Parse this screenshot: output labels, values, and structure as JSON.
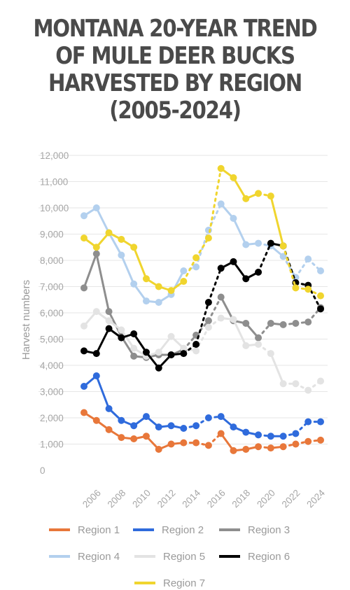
{
  "chart_data": {
    "type": "line",
    "title": "MONTANA 20-YEAR TREND OF MULE DEER BUCKS HARVESTED BY REGION (2005-2024)",
    "ylabel": "Harvest numbers",
    "xlabel": "",
    "ylim": [
      0,
      12000
    ],
    "yticks": [
      0,
      1000,
      2000,
      3000,
      4000,
      5000,
      6000,
      7000,
      8000,
      9000,
      10000,
      11000,
      12000
    ],
    "ytick_labels": [
      "0",
      "1,000",
      "2,000",
      "3,000",
      "4,000",
      "5,000",
      "6,000",
      "7,000",
      "8,000",
      "9,000",
      "10,000",
      "11,000",
      "12,000"
    ],
    "xticks": [
      2006,
      2008,
      2010,
      2012,
      2014,
      2016,
      2018,
      2020,
      2022,
      2024
    ],
    "xtick_labels": [
      "2006",
      "2008",
      "2010",
      "2012",
      "2014",
      "2016",
      "2018",
      "2020",
      "2022",
      "2024"
    ],
    "grid": "horizontal",
    "legend_position": "bottom",
    "x": [
      2005,
      2006,
      2007,
      2008,
      2009,
      2010,
      2011,
      2012,
      2013,
      2014,
      2015,
      2016,
      2017,
      2018,
      2019,
      2020,
      2021,
      2022,
      2023,
      2024
    ],
    "series": [
      {
        "name": "Region 1",
        "color": "#e8773a",
        "values": [
          2200,
          1900,
          1550,
          1250,
          1200,
          1300,
          800,
          1000,
          1050,
          1050,
          950,
          1400,
          750,
          800,
          900,
          850,
          900,
          1000,
          1100,
          1150
        ]
      },
      {
        "name": "Region 2",
        "color": "#2f6bdc",
        "values": [
          3200,
          3600,
          2350,
          1900,
          1700,
          2050,
          1650,
          1700,
          1600,
          1700,
          2000,
          2050,
          1650,
          1450,
          1350,
          1300,
          1300,
          1400,
          1850,
          1850
        ]
      },
      {
        "name": "Region 3",
        "color": "#8e8e8e",
        "values": [
          6950,
          8250,
          6050,
          5100,
          4350,
          4300,
          4400,
          4400,
          4600,
          5150,
          5700,
          6600,
          5700,
          5600,
          5050,
          5600,
          5550,
          5600,
          5650,
          6200
        ]
      },
      {
        "name": "Region 4",
        "color": "#b3d0ee",
        "values": [
          9700,
          10000,
          9050,
          8200,
          7100,
          6450,
          6400,
          6700,
          7600,
          7750,
          9150,
          10150,
          9600,
          8600,
          8650,
          8550,
          8150,
          7350,
          8050,
          7600
        ]
      },
      {
        "name": "Region 5",
        "color": "#e3e3e3",
        "values": [
          5500,
          6050,
          5700,
          5350,
          4650,
          4350,
          4500,
          5100,
          4650,
          4550,
          5450,
          5800,
          5750,
          4750,
          4800,
          4450,
          3300,
          3300,
          3050,
          3400
        ]
      },
      {
        "name": "Region 6",
        "color": "#000000",
        "values": [
          4550,
          4450,
          5400,
          5050,
          5200,
          4500,
          3900,
          4400,
          4450,
          4800,
          6400,
          7700,
          7950,
          7300,
          7550,
          8650,
          8550,
          7150,
          7050,
          6150
        ]
      },
      {
        "name": "Region 7",
        "color": "#f0d52e",
        "values": [
          8850,
          8500,
          9050,
          8800,
          8500,
          7300,
          7000,
          6850,
          7200,
          8100,
          8850,
          11500,
          11150,
          10350,
          10550,
          10450,
          8550,
          6950,
          6900,
          6650
        ]
      }
    ]
  }
}
